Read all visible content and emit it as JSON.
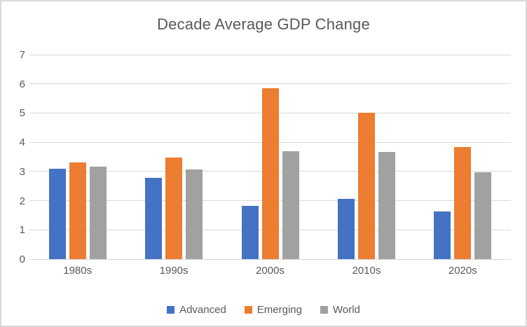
{
  "chart_data": {
    "type": "bar",
    "title": "Decade Average GDP Change",
    "categories": [
      "1980s",
      "1990s",
      "2000s",
      "2010s",
      "2020s"
    ],
    "series": [
      {
        "name": "Advanced",
        "color": "#4472c4",
        "dither": false,
        "values": [
          3.1,
          2.77,
          1.82,
          2.06,
          1.62
        ]
      },
      {
        "name": "Emerging",
        "color": "#ed7d31",
        "dither": false,
        "values": [
          3.3,
          3.48,
          5.85,
          5.0,
          3.83
        ]
      },
      {
        "name": "World",
        "color": "#a6a6a6",
        "dither": true,
        "values": [
          3.17,
          3.08,
          3.7,
          3.66,
          2.98
        ]
      }
    ],
    "xlabel": "",
    "ylabel": "",
    "ylim": [
      0,
      7
    ],
    "yticks": [
      0,
      1,
      2,
      3,
      4,
      5,
      6,
      7
    ],
    "grid": true,
    "legend_position": "bottom",
    "colors": {
      "text": "#595959",
      "gridline": "#d9d9d9",
      "background": "#ffffff",
      "border": "#d9d9d9"
    }
  }
}
